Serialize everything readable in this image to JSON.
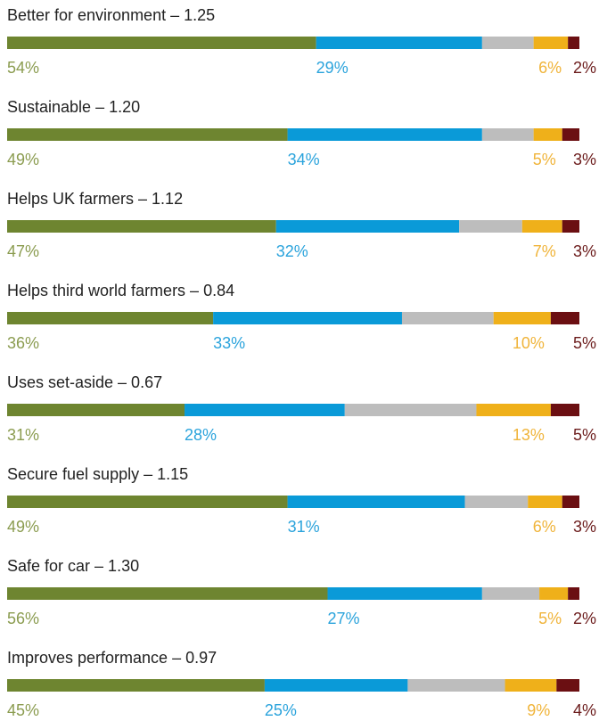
{
  "chart_data": {
    "type": "stacked_hbar",
    "categories": [
      "Better for environment – 1.25",
      "Sustainable – 1.20",
      "Helps UK farmers – 1.12",
      "Helps third world farmers – 0.84",
      "Uses set-aside – 0.67",
      "Secure fuel supply – 1.15",
      "Safe for car – 1.30",
      "Improves performance – 0.97"
    ],
    "series": [
      {
        "color": "#6e8530",
        "label_color": "#8b9c50",
        "values": [
          54,
          49,
          47,
          36,
          31,
          49,
          56,
          45
        ],
        "value_labels": [
          "54%",
          "49%",
          "47%",
          "36%",
          "31%",
          "49%",
          "56%",
          "45%"
        ]
      },
      {
        "color": "#0a9ad8",
        "label_color": "#2aa3dc",
        "values": [
          29,
          34,
          32,
          33,
          28,
          31,
          27,
          25
        ],
        "value_labels": [
          "29%",
          "34%",
          "32%",
          "33%",
          "28%",
          "31%",
          "27%",
          "25%"
        ]
      },
      {
        "color": "#bdbdbd",
        "values": [
          9,
          9,
          11,
          16,
          23,
          11,
          10,
          17
        ]
      },
      {
        "color": "#efb01a",
        "label_color": "#f0b43a",
        "values": [
          6,
          5,
          7,
          10,
          13,
          6,
          5,
          9
        ],
        "value_labels": [
          "6%",
          "5%",
          "7%",
          "10%",
          "13%",
          "6%",
          "5%",
          "9%"
        ]
      },
      {
        "color": "#6b0f12",
        "label_color": "#6b1b1b",
        "values": [
          2,
          3,
          3,
          5,
          5,
          3,
          2,
          4
        ],
        "value_labels": [
          "2%",
          "3%",
          "3%",
          "5%",
          "5%",
          "3%",
          "2%",
          "4%"
        ]
      }
    ]
  }
}
